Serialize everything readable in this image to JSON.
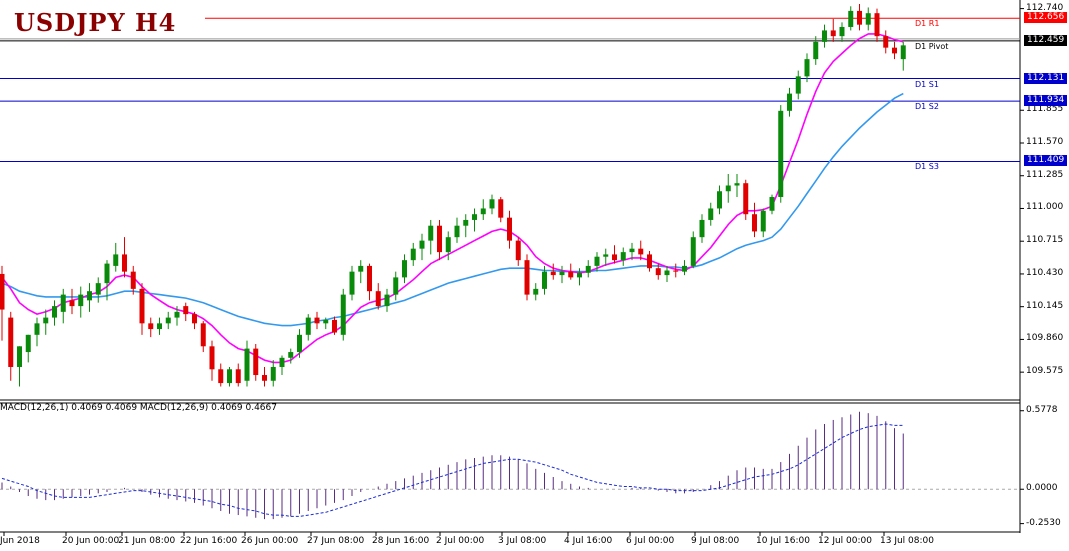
{
  "chart_data": {
    "type": "candlestick",
    "title": "USDJPY  H4",
    "symbol": "USDJPY",
    "timeframe": "H4",
    "price_axis": {
      "ylim": [
        109.35,
        112.78
      ],
      "ticks": [
        "112.740",
        "111.855",
        "111.570",
        "111.285",
        "111.000",
        "110.715",
        "110.430",
        "110.145",
        "109.860",
        "109.575"
      ]
    },
    "time_axis": {
      "labels": [
        "Jun 2018",
        "20 Jun 00:00",
        "21 Jun 08:00",
        "22 Jun 16:00",
        "26 Jun 00:00",
        "27 Jun 08:00",
        "28 Jun 16:00",
        "2 Jul 00:00",
        "3 Jul 08:00",
        "4 Jul 16:00",
        "6 Jul 00:00",
        "9 Jul 08:00",
        "10 Jul 16:00",
        "12 Jul 00:00",
        "13 Jul 08:00"
      ]
    },
    "levels": [
      {
        "name": "D1 R1",
        "value": "112.656",
        "price": 112.656,
        "color": "#ff0000"
      },
      {
        "name": "D1 Pivot",
        "value": "112.459",
        "price": 112.459,
        "color": "#000000"
      },
      {
        "name": "D1 S1",
        "value": "112.131",
        "price": 112.131,
        "color": "#0000cc"
      },
      {
        "name": "D1 S2",
        "value": "111.934",
        "price": 111.934,
        "color": "#0000cc"
      },
      {
        "name": "D1 S3",
        "value": "111.409",
        "price": 111.409,
        "color": "#0000cc"
      }
    ],
    "candles": [
      [
        110.43,
        110.5,
        109.85,
        110.12
      ],
      [
        110.05,
        110.1,
        109.5,
        109.62
      ],
      [
        109.62,
        109.8,
        109.45,
        109.8
      ],
      [
        109.75,
        109.9,
        109.66,
        109.9
      ],
      [
        109.9,
        110.05,
        109.8,
        110.0
      ],
      [
        110.0,
        110.12,
        109.9,
        110.05
      ],
      [
        110.05,
        110.2,
        109.98,
        110.15
      ],
      [
        110.1,
        110.3,
        110.0,
        110.25
      ],
      [
        110.2,
        110.3,
        110.08,
        110.15
      ],
      [
        110.15,
        110.32,
        110.05,
        110.25
      ],
      [
        110.2,
        110.35,
        110.1,
        110.28
      ],
      [
        110.25,
        110.4,
        110.18,
        110.35
      ],
      [
        110.35,
        110.55,
        110.2,
        110.52
      ],
      [
        110.5,
        110.7,
        110.45,
        110.6
      ],
      [
        110.6,
        110.75,
        110.4,
        110.45
      ],
      [
        110.45,
        110.5,
        110.25,
        110.3
      ],
      [
        110.3,
        110.35,
        109.9,
        110.0
      ],
      [
        110.0,
        110.05,
        109.88,
        109.95
      ],
      [
        109.95,
        110.05,
        109.9,
        110.0
      ],
      [
        110.0,
        110.1,
        109.95,
        110.05
      ],
      [
        110.05,
        110.15,
        109.98,
        110.1
      ],
      [
        110.15,
        110.18,
        110.02,
        110.08
      ],
      [
        110.08,
        110.1,
        109.95,
        110.0
      ],
      [
        110.0,
        110.02,
        109.75,
        109.8
      ],
      [
        109.8,
        109.85,
        109.5,
        109.6
      ],
      [
        109.6,
        109.65,
        109.45,
        109.48
      ],
      [
        109.48,
        109.62,
        109.45,
        109.6
      ],
      [
        109.6,
        109.65,
        109.45,
        109.48
      ],
      [
        109.5,
        109.85,
        109.45,
        109.78
      ],
      [
        109.78,
        109.82,
        109.5,
        109.55
      ],
      [
        109.55,
        109.62,
        109.45,
        109.5
      ],
      [
        109.5,
        109.68,
        109.45,
        109.62
      ],
      [
        109.62,
        109.72,
        109.55,
        109.7
      ],
      [
        109.7,
        109.78,
        109.65,
        109.75
      ],
      [
        109.75,
        109.95,
        109.7,
        109.9
      ],
      [
        109.9,
        110.08,
        109.85,
        110.05
      ],
      [
        110.05,
        110.1,
        109.95,
        110.0
      ],
      [
        110.0,
        110.05,
        109.95,
        110.03
      ],
      [
        110.03,
        110.06,
        109.9,
        109.92
      ],
      [
        109.9,
        110.3,
        109.85,
        110.25
      ],
      [
        110.25,
        110.5,
        110.2,
        110.45
      ],
      [
        110.45,
        110.55,
        110.35,
        110.5
      ],
      [
        110.5,
        110.52,
        110.2,
        110.28
      ],
      [
        110.28,
        110.35,
        110.12,
        110.15
      ],
      [
        110.15,
        110.3,
        110.1,
        110.25
      ],
      [
        110.25,
        110.45,
        110.2,
        110.4
      ],
      [
        110.4,
        110.6,
        110.35,
        110.55
      ],
      [
        110.55,
        110.7,
        110.5,
        110.65
      ],
      [
        110.65,
        110.78,
        110.55,
        110.72
      ],
      [
        110.72,
        110.9,
        110.6,
        110.85
      ],
      [
        110.85,
        110.9,
        110.55,
        110.62
      ],
      [
        110.62,
        110.8,
        110.55,
        110.75
      ],
      [
        110.75,
        110.92,
        110.7,
        110.85
      ],
      [
        110.85,
        110.95,
        110.75,
        110.9
      ],
      [
        110.9,
        111.0,
        110.8,
        110.95
      ],
      [
        110.95,
        111.08,
        110.9,
        111.0
      ],
      [
        111.0,
        111.12,
        110.95,
        111.08
      ],
      [
        111.08,
        111.1,
        110.88,
        110.92
      ],
      [
        110.92,
        110.98,
        110.65,
        110.72
      ],
      [
        110.72,
        110.75,
        110.5,
        110.55
      ],
      [
        110.55,
        110.6,
        110.2,
        110.25
      ],
      [
        110.25,
        110.35,
        110.2,
        110.3
      ],
      [
        110.3,
        110.5,
        110.25,
        110.45
      ],
      [
        110.45,
        110.52,
        110.38,
        110.42
      ],
      [
        110.42,
        110.5,
        110.35,
        110.45
      ],
      [
        110.45,
        110.52,
        110.38,
        110.4
      ],
      [
        110.4,
        110.48,
        110.33,
        110.44
      ],
      [
        110.44,
        110.55,
        110.4,
        110.5
      ],
      [
        110.5,
        110.62,
        110.45,
        110.58
      ],
      [
        110.58,
        110.65,
        110.5,
        110.6
      ],
      [
        110.6,
        110.68,
        110.52,
        110.55
      ],
      [
        110.55,
        110.66,
        110.5,
        110.62
      ],
      [
        110.62,
        110.7,
        110.55,
        110.65
      ],
      [
        110.65,
        110.72,
        110.55,
        110.6
      ],
      [
        110.6,
        110.63,
        110.45,
        110.48
      ],
      [
        110.48,
        110.52,
        110.38,
        110.42
      ],
      [
        110.42,
        110.5,
        110.36,
        110.46
      ],
      [
        110.46,
        110.52,
        110.4,
        110.45
      ],
      [
        110.45,
        110.55,
        110.42,
        110.5
      ],
      [
        110.5,
        110.8,
        110.48,
        110.75
      ],
      [
        110.75,
        110.95,
        110.7,
        110.9
      ],
      [
        110.9,
        111.05,
        110.85,
        111.0
      ],
      [
        111.0,
        111.2,
        110.95,
        111.15
      ],
      [
        111.15,
        111.3,
        111.05,
        111.2
      ],
      [
        111.2,
        111.3,
        111.1,
        111.22
      ],
      [
        111.22,
        111.25,
        110.9,
        110.95
      ],
      [
        110.95,
        111.05,
        110.75,
        110.8
      ],
      [
        110.8,
        111.0,
        110.75,
        110.98
      ],
      [
        110.98,
        111.12,
        110.95,
        111.1
      ],
      [
        111.1,
        111.9,
        111.05,
        111.85
      ],
      [
        111.85,
        112.05,
        111.8,
        112.0
      ],
      [
        112.0,
        112.2,
        111.95,
        112.15
      ],
      [
        112.15,
        112.35,
        112.1,
        112.3
      ],
      [
        112.3,
        112.5,
        112.25,
        112.45
      ],
      [
        112.45,
        112.6,
        112.4,
        112.55
      ],
      [
        112.55,
        112.65,
        112.45,
        112.5
      ],
      [
        112.5,
        112.62,
        112.45,
        112.58
      ],
      [
        112.58,
        112.76,
        112.55,
        112.72
      ],
      [
        112.72,
        112.78,
        112.55,
        112.6
      ],
      [
        112.6,
        112.75,
        112.55,
        112.7
      ],
      [
        112.7,
        112.74,
        112.45,
        112.5
      ],
      [
        112.5,
        112.55,
        112.35,
        112.4
      ],
      [
        112.4,
        112.45,
        112.3,
        112.35
      ],
      [
        112.3,
        112.45,
        112.2,
        112.42
      ]
    ],
    "ma_fast": {
      "color": "#ff00ff",
      "values": [
        110.4,
        110.3,
        110.18,
        110.12,
        110.08,
        110.1,
        110.13,
        110.18,
        110.2,
        110.22,
        110.25,
        110.27,
        110.32,
        110.4,
        110.42,
        110.4,
        110.32,
        110.25,
        110.2,
        110.15,
        110.12,
        110.1,
        110.08,
        110.04,
        109.98,
        109.9,
        109.83,
        109.78,
        109.76,
        109.72,
        109.68,
        109.66,
        109.66,
        109.68,
        109.74,
        109.8,
        109.86,
        109.9,
        109.93,
        109.98,
        110.06,
        110.14,
        110.18,
        110.2,
        110.22,
        110.26,
        110.32,
        110.38,
        110.45,
        110.52,
        110.56,
        110.6,
        110.64,
        110.68,
        110.72,
        110.76,
        110.8,
        110.82,
        110.8,
        110.75,
        110.68,
        110.58,
        110.52,
        110.48,
        110.46,
        110.45,
        110.44,
        110.45,
        110.48,
        110.51,
        110.53,
        110.55,
        110.57,
        110.57,
        110.55,
        110.52,
        110.49,
        110.47,
        110.46,
        110.5,
        110.58,
        110.66,
        110.76,
        110.86,
        110.94,
        110.98,
        110.98,
        110.99,
        111.02,
        111.2,
        111.4,
        111.6,
        111.82,
        112.02,
        112.18,
        112.28,
        112.35,
        112.42,
        112.48,
        112.52,
        112.52,
        112.5,
        112.47,
        112.45
      ]
    },
    "ma_slow": {
      "color": "#3399ee",
      "values": [
        110.35,
        110.32,
        110.28,
        110.26,
        110.24,
        110.23,
        110.23,
        110.23,
        110.23,
        110.23,
        110.23,
        110.23,
        110.24,
        110.26,
        110.28,
        110.28,
        110.27,
        110.26,
        110.25,
        110.24,
        110.23,
        110.22,
        110.2,
        110.18,
        110.15,
        110.12,
        110.09,
        110.06,
        110.04,
        110.02,
        110.0,
        109.99,
        109.98,
        109.98,
        109.99,
        110.0,
        110.02,
        110.03,
        110.05,
        110.06,
        110.08,
        110.1,
        110.12,
        110.14,
        110.16,
        110.18,
        110.2,
        110.23,
        110.26,
        110.29,
        110.32,
        110.35,
        110.37,
        110.39,
        110.41,
        110.43,
        110.45,
        110.47,
        110.48,
        110.48,
        110.48,
        110.47,
        110.46,
        110.46,
        110.45,
        110.45,
        110.45,
        110.45,
        110.46,
        110.46,
        110.47,
        110.48,
        110.49,
        110.5,
        110.5,
        110.5,
        110.49,
        110.49,
        110.48,
        110.49,
        110.51,
        110.54,
        110.57,
        110.61,
        110.65,
        110.68,
        110.7,
        110.72,
        110.75,
        110.82,
        110.92,
        111.02,
        111.13,
        111.24,
        111.35,
        111.45,
        111.54,
        111.62,
        111.7,
        111.77,
        111.84,
        111.9,
        111.96,
        112.0
      ]
    },
    "macd": {
      "label": "MACD(12,26,1) 0.4069 0.4069 MACD(12,26,9) 0.4069 0.4667",
      "ylim": [
        -0.3,
        0.62
      ],
      "ticks": [
        "0.5778",
        "0.0000",
        "-0.2530"
      ],
      "histogram": [
        0.05,
        0.02,
        -0.02,
        -0.05,
        -0.07,
        -0.08,
        -0.08,
        -0.07,
        -0.06,
        -0.05,
        -0.04,
        -0.03,
        -0.02,
        0.0,
        0.01,
        0.0,
        -0.02,
        -0.04,
        -0.06,
        -0.07,
        -0.08,
        -0.09,
        -0.1,
        -0.12,
        -0.14,
        -0.16,
        -0.18,
        -0.19,
        -0.2,
        -0.21,
        -0.22,
        -0.22,
        -0.21,
        -0.2,
        -0.18,
        -0.16,
        -0.14,
        -0.12,
        -0.1,
        -0.08,
        -0.05,
        -0.02,
        0.0,
        0.02,
        0.04,
        0.06,
        0.08,
        0.1,
        0.12,
        0.14,
        0.16,
        0.18,
        0.2,
        0.22,
        0.23,
        0.24,
        0.25,
        0.25,
        0.24,
        0.22,
        0.19,
        0.15,
        0.12,
        0.09,
        0.06,
        0.04,
        0.02,
        0.01,
        0.0,
        0.0,
        0.0,
        0.0,
        0.01,
        0.01,
        0.0,
        -0.01,
        -0.02,
        -0.03,
        -0.03,
        -0.02,
        0.0,
        0.03,
        0.06,
        0.1,
        0.14,
        0.16,
        0.16,
        0.15,
        0.15,
        0.2,
        0.26,
        0.32,
        0.38,
        0.44,
        0.48,
        0.51,
        0.53,
        0.55,
        0.57,
        0.56,
        0.54,
        0.5,
        0.45,
        0.41
      ],
      "signal": [
        0.08,
        0.06,
        0.04,
        0.02,
        -0.01,
        -0.03,
        -0.05,
        -0.06,
        -0.06,
        -0.06,
        -0.06,
        -0.05,
        -0.04,
        -0.03,
        -0.02,
        -0.01,
        -0.01,
        -0.02,
        -0.03,
        -0.04,
        -0.05,
        -0.06,
        -0.07,
        -0.08,
        -0.09,
        -0.11,
        -0.12,
        -0.14,
        -0.15,
        -0.16,
        -0.18,
        -0.19,
        -0.19,
        -0.2,
        -0.2,
        -0.19,
        -0.18,
        -0.17,
        -0.15,
        -0.13,
        -0.11,
        -0.09,
        -0.07,
        -0.05,
        -0.03,
        -0.01,
        0.01,
        0.03,
        0.05,
        0.07,
        0.09,
        0.11,
        0.13,
        0.15,
        0.17,
        0.19,
        0.2,
        0.21,
        0.22,
        0.22,
        0.21,
        0.2,
        0.18,
        0.16,
        0.14,
        0.11,
        0.09,
        0.07,
        0.05,
        0.04,
        0.03,
        0.02,
        0.02,
        0.01,
        0.01,
        0.0,
        0.0,
        -0.01,
        -0.01,
        -0.01,
        -0.01,
        0.0,
        0.01,
        0.03,
        0.05,
        0.07,
        0.09,
        0.1,
        0.11,
        0.13,
        0.15,
        0.18,
        0.22,
        0.26,
        0.3,
        0.34,
        0.38,
        0.41,
        0.44,
        0.46,
        0.47,
        0.48,
        0.47,
        0.47
      ],
      "colors": {
        "histogram": "#5a2d82",
        "signal": "#1a2bd6"
      }
    }
  }
}
